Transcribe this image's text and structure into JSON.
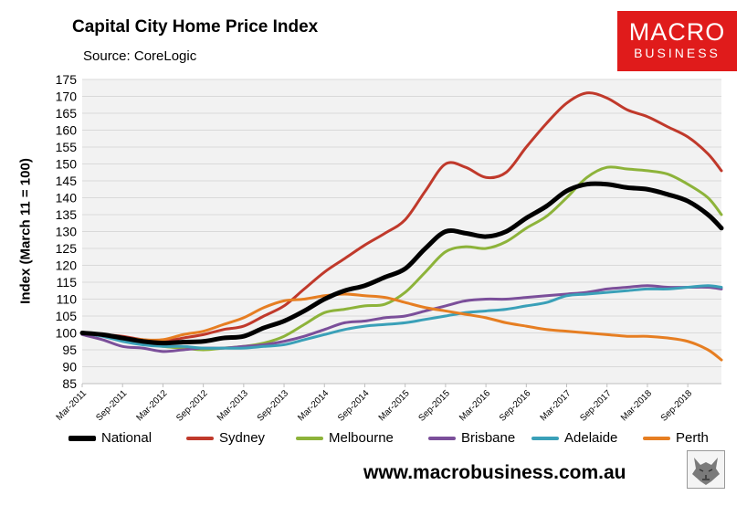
{
  "header": {
    "title": "Capital City Home Price Index",
    "source": "Source: CoreLogic"
  },
  "logo": {
    "line1": "MACRO",
    "line2": "BUSINESS"
  },
  "footer": {
    "url": "www.macrobusiness.com.au"
  },
  "colors": {
    "plot_bg": "#f2f2f2",
    "gridline": "#d9d9d9",
    "National": "#000000",
    "Sydney": "#c0392b",
    "Melbourne": "#8db33a",
    "Brisbane": "#7b4f9a",
    "Adelaide": "#3aa0b8",
    "Perth": "#e67e22",
    "logo_bg": "#e01b1b"
  },
  "chart_data": {
    "type": "line",
    "ylabel": "Index (March 11 = 100)",
    "xlabel": "",
    "ylim": [
      85,
      175
    ],
    "yticks": [
      85,
      90,
      95,
      100,
      105,
      110,
      115,
      120,
      125,
      130,
      135,
      140,
      145,
      150,
      155,
      160,
      165,
      170,
      175
    ],
    "xlim": [
      "2011-03",
      "2019-02"
    ],
    "xticks": [
      "Mar-2011",
      "Sep-2011",
      "Mar-2012",
      "Sep-2012",
      "Mar-2013",
      "Sep-2013",
      "Mar-2014",
      "Sep-2014",
      "Mar-2015",
      "Sep-2015",
      "Mar-2016",
      "Sep-2016",
      "Mar-2017",
      "Sep-2017",
      "Mar-2018",
      "Sep-2018"
    ],
    "grid": true,
    "legend_position": "bottom",
    "series": [
      {
        "name": "National",
        "points": [
          [
            "2011-03",
            100
          ],
          [
            "2011-06",
            99.5
          ],
          [
            "2011-09",
            98.5
          ],
          [
            "2011-12",
            97.5
          ],
          [
            "2012-03",
            97
          ],
          [
            "2012-06",
            97.3
          ],
          [
            "2012-09",
            97.5
          ],
          [
            "2012-12",
            98.5
          ],
          [
            "2013-03",
            99
          ],
          [
            "2013-06",
            101.5
          ],
          [
            "2013-09",
            103.5
          ],
          [
            "2013-12",
            106.5
          ],
          [
            "2014-03",
            110
          ],
          [
            "2014-06",
            112.5
          ],
          [
            "2014-09",
            114
          ],
          [
            "2014-12",
            116.5
          ],
          [
            "2015-03",
            119
          ],
          [
            "2015-06",
            125
          ],
          [
            "2015-09",
            130
          ],
          [
            "2015-12",
            129.5
          ],
          [
            "2016-03",
            128.5
          ],
          [
            "2016-06",
            130
          ],
          [
            "2016-09",
            134
          ],
          [
            "2016-12",
            137.5
          ],
          [
            "2017-03",
            142
          ],
          [
            "2017-06",
            144
          ],
          [
            "2017-09",
            144
          ],
          [
            "2017-12",
            143
          ],
          [
            "2018-03",
            142.5
          ],
          [
            "2018-06",
            141
          ],
          [
            "2018-09",
            139
          ],
          [
            "2018-12",
            135
          ],
          [
            "2019-02",
            131
          ]
        ]
      },
      {
        "name": "Sydney",
        "points": [
          [
            "2011-03",
            100
          ],
          [
            "2011-06",
            99.5
          ],
          [
            "2011-09",
            99
          ],
          [
            "2011-12",
            98
          ],
          [
            "2012-03",
            97.5
          ],
          [
            "2012-06",
            98.5
          ],
          [
            "2012-09",
            99.5
          ],
          [
            "2012-12",
            101
          ],
          [
            "2013-03",
            102
          ],
          [
            "2013-06",
            105
          ],
          [
            "2013-09",
            108
          ],
          [
            "2013-12",
            113
          ],
          [
            "2014-03",
            118
          ],
          [
            "2014-06",
            122
          ],
          [
            "2014-09",
            126
          ],
          [
            "2014-12",
            129.5
          ],
          [
            "2015-03",
            133.5
          ],
          [
            "2015-06",
            142
          ],
          [
            "2015-09",
            150
          ],
          [
            "2015-12",
            149
          ],
          [
            "2016-03",
            146
          ],
          [
            "2016-06",
            147.5
          ],
          [
            "2016-09",
            155
          ],
          [
            "2016-12",
            162
          ],
          [
            "2017-03",
            168
          ],
          [
            "2017-06",
            171
          ],
          [
            "2017-09",
            169.5
          ],
          [
            "2017-12",
            166
          ],
          [
            "2018-03",
            164
          ],
          [
            "2018-06",
            161
          ],
          [
            "2018-09",
            158
          ],
          [
            "2018-12",
            153
          ],
          [
            "2019-02",
            148
          ]
        ]
      },
      {
        "name": "Melbourne",
        "points": [
          [
            "2011-03",
            100
          ],
          [
            "2011-06",
            99.5
          ],
          [
            "2011-09",
            98
          ],
          [
            "2011-12",
            97
          ],
          [
            "2012-03",
            96
          ],
          [
            "2012-06",
            95.5
          ],
          [
            "2012-09",
            95
          ],
          [
            "2012-12",
            95.5
          ],
          [
            "2013-03",
            96
          ],
          [
            "2013-06",
            97
          ],
          [
            "2013-09",
            99
          ],
          [
            "2013-12",
            102.5
          ],
          [
            "2014-03",
            106
          ],
          [
            "2014-06",
            107
          ],
          [
            "2014-09",
            108
          ],
          [
            "2014-12",
            108.5
          ],
          [
            "2015-03",
            112
          ],
          [
            "2015-06",
            118
          ],
          [
            "2015-09",
            124
          ],
          [
            "2015-12",
            125.5
          ],
          [
            "2016-03",
            125
          ],
          [
            "2016-06",
            127
          ],
          [
            "2016-09",
            131
          ],
          [
            "2016-12",
            134.5
          ],
          [
            "2017-03",
            140
          ],
          [
            "2017-06",
            146
          ],
          [
            "2017-09",
            149
          ],
          [
            "2017-12",
            148.5
          ],
          [
            "2018-03",
            148
          ],
          [
            "2018-06",
            147
          ],
          [
            "2018-09",
            144
          ],
          [
            "2018-12",
            140
          ],
          [
            "2019-02",
            135
          ]
        ]
      },
      {
        "name": "Brisbane",
        "points": [
          [
            "2011-03",
            99.5
          ],
          [
            "2011-06",
            98
          ],
          [
            "2011-09",
            96
          ],
          [
            "2011-12",
            95.5
          ],
          [
            "2012-03",
            94.5
          ],
          [
            "2012-06",
            95
          ],
          [
            "2012-09",
            95.5
          ],
          [
            "2012-12",
            95.5
          ],
          [
            "2013-03",
            96
          ],
          [
            "2013-06",
            96.5
          ],
          [
            "2013-09",
            97.5
          ],
          [
            "2013-12",
            99
          ],
          [
            "2014-03",
            101
          ],
          [
            "2014-06",
            103
          ],
          [
            "2014-09",
            103.5
          ],
          [
            "2014-12",
            104.5
          ],
          [
            "2015-03",
            105
          ],
          [
            "2015-06",
            106.5
          ],
          [
            "2015-09",
            108
          ],
          [
            "2015-12",
            109.5
          ],
          [
            "2016-03",
            110
          ],
          [
            "2016-06",
            110
          ],
          [
            "2016-09",
            110.5
          ],
          [
            "2016-12",
            111
          ],
          [
            "2017-03",
            111.5
          ],
          [
            "2017-06",
            112
          ],
          [
            "2017-09",
            113
          ],
          [
            "2017-12",
            113.5
          ],
          [
            "2018-03",
            114
          ],
          [
            "2018-06",
            113.5
          ],
          [
            "2018-09",
            113.5
          ],
          [
            "2018-12",
            113.5
          ],
          [
            "2019-02",
            113
          ]
        ]
      },
      {
        "name": "Adelaide",
        "points": [
          [
            "2011-03",
            100
          ],
          [
            "2011-06",
            99
          ],
          [
            "2011-09",
            97.5
          ],
          [
            "2011-12",
            96.5
          ],
          [
            "2012-03",
            96
          ],
          [
            "2012-06",
            96
          ],
          [
            "2012-09",
            95.5
          ],
          [
            "2012-12",
            95.5
          ],
          [
            "2013-03",
            95.5
          ],
          [
            "2013-06",
            96
          ],
          [
            "2013-09",
            96.5
          ],
          [
            "2013-12",
            98
          ],
          [
            "2014-03",
            99.5
          ],
          [
            "2014-06",
            101
          ],
          [
            "2014-09",
            102
          ],
          [
            "2014-12",
            102.5
          ],
          [
            "2015-03",
            103
          ],
          [
            "2015-06",
            104
          ],
          [
            "2015-09",
            105
          ],
          [
            "2015-12",
            106
          ],
          [
            "2016-03",
            106.5
          ],
          [
            "2016-06",
            107
          ],
          [
            "2016-09",
            108
          ],
          [
            "2016-12",
            109
          ],
          [
            "2017-03",
            111
          ],
          [
            "2017-06",
            111.5
          ],
          [
            "2017-09",
            112
          ],
          [
            "2017-12",
            112.5
          ],
          [
            "2018-03",
            113
          ],
          [
            "2018-06",
            113
          ],
          [
            "2018-09",
            113.5
          ],
          [
            "2018-12",
            114
          ],
          [
            "2019-02",
            113.5
          ]
        ]
      },
      {
        "name": "Perth",
        "points": [
          [
            "2011-03",
            100
          ],
          [
            "2011-06",
            99.5
          ],
          [
            "2011-09",
            98.5
          ],
          [
            "2011-12",
            98
          ],
          [
            "2012-03",
            98
          ],
          [
            "2012-06",
            99.5
          ],
          [
            "2012-09",
            100.5
          ],
          [
            "2012-12",
            102.5
          ],
          [
            "2013-03",
            104.5
          ],
          [
            "2013-06",
            107.5
          ],
          [
            "2013-09",
            109.5
          ],
          [
            "2013-12",
            110
          ],
          [
            "2014-03",
            111
          ],
          [
            "2014-06",
            111.5
          ],
          [
            "2014-09",
            111
          ],
          [
            "2014-12",
            110.5
          ],
          [
            "2015-03",
            109
          ],
          [
            "2015-06",
            107.5
          ],
          [
            "2015-09",
            106.5
          ],
          [
            "2015-12",
            105.5
          ],
          [
            "2016-03",
            104.5
          ],
          [
            "2016-06",
            103
          ],
          [
            "2016-09",
            102
          ],
          [
            "2016-12",
            101
          ],
          [
            "2017-03",
            100.5
          ],
          [
            "2017-06",
            100
          ],
          [
            "2017-09",
            99.5
          ],
          [
            "2017-12",
            99
          ],
          [
            "2018-03",
            99
          ],
          [
            "2018-06",
            98.5
          ],
          [
            "2018-09",
            97.5
          ],
          [
            "2018-12",
            95
          ],
          [
            "2019-02",
            92
          ]
        ]
      }
    ]
  }
}
